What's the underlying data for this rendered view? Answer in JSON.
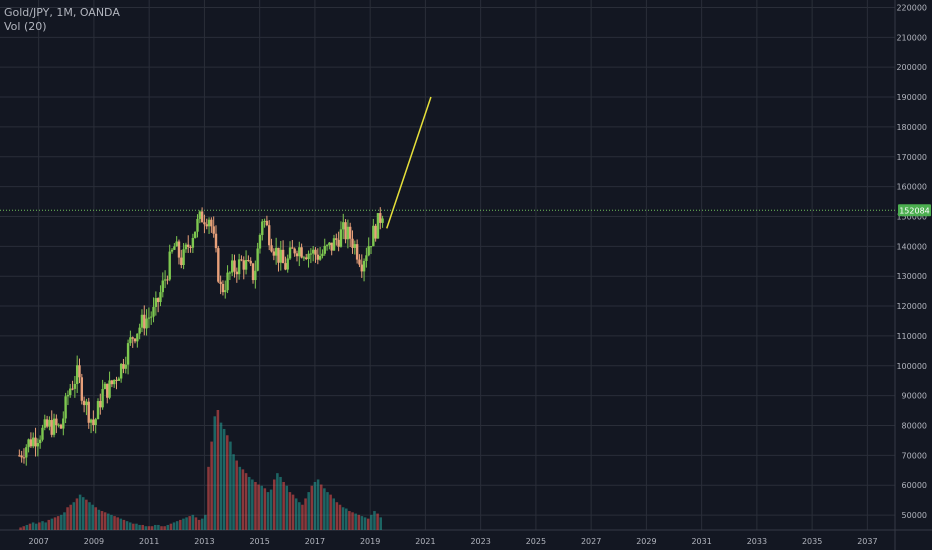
{
  "header": {
    "title": "Gold/JPY, 1M, OANDA",
    "volume_label": "Vol (20)"
  },
  "price_badge": "152084",
  "colors": {
    "background": "#131722",
    "grid": "#2a2e39",
    "up": "#26a69a",
    "down": "#ef5350",
    "candle_up": "#7ec850",
    "candle_down": "#e8a07a",
    "projection": "#e6e03a",
    "badge": "#4caf50",
    "axis_text": "#b2b5be"
  },
  "chart_data": {
    "type": "candlestick",
    "title": "Gold/JPY, 1M, OANDA",
    "xlabel": "",
    "ylabel": "",
    "x_ticks": [
      "2007",
      "2009",
      "2011",
      "2013",
      "2015",
      "2017",
      "2019",
      "2021",
      "2023",
      "2025",
      "2027",
      "2029",
      "2031",
      "2033",
      "2035",
      "2037"
    ],
    "y_ticks": [
      50000,
      60000,
      70000,
      80000,
      90000,
      100000,
      110000,
      120000,
      130000,
      140000,
      150000,
      160000,
      170000,
      180000,
      190000,
      200000,
      210000,
      220000
    ],
    "ylim": [
      45000,
      222500
    ],
    "xlim": [
      2005.6,
      2038.0
    ],
    "grid": true,
    "last_price": 152084,
    "close_path": [
      [
        2006.3,
        70000
      ],
      [
        2006.6,
        74000
      ],
      [
        2007.0,
        77000
      ],
      [
        2007.4,
        80000
      ],
      [
        2007.8,
        79000
      ],
      [
        2008.1,
        92000
      ],
      [
        2008.4,
        97000
      ],
      [
        2008.7,
        87000
      ],
      [
        2009.0,
        80000
      ],
      [
        2009.3,
        91000
      ],
      [
        2009.6,
        93000
      ],
      [
        2010.0,
        100000
      ],
      [
        2010.4,
        110000
      ],
      [
        2010.8,
        115000
      ],
      [
        2011.2,
        118000
      ],
      [
        2011.6,
        130000
      ],
      [
        2011.9,
        140000
      ],
      [
        2012.2,
        135000
      ],
      [
        2012.6,
        145000
      ],
      [
        2012.9,
        150000
      ],
      [
        2013.2,
        150000
      ],
      [
        2013.6,
        125000
      ],
      [
        2014.0,
        132000
      ],
      [
        2014.4,
        135000
      ],
      [
        2014.8,
        130000
      ],
      [
        2015.1,
        150000
      ],
      [
        2015.5,
        140000
      ],
      [
        2015.9,
        133000
      ],
      [
        2016.3,
        140000
      ],
      [
        2016.8,
        138000
      ],
      [
        2017.2,
        137000
      ],
      [
        2017.6,
        140000
      ],
      [
        2018.0,
        145000
      ],
      [
        2018.3,
        143000
      ],
      [
        2018.7,
        135000
      ],
      [
        2019.0,
        142000
      ],
      [
        2019.3,
        148000
      ],
      [
        2019.45,
        152000
      ]
    ],
    "volume_heights": [
      2,
      3,
      4,
      5,
      6,
      5,
      6,
      7,
      6,
      8,
      9,
      10,
      11,
      12,
      14,
      18,
      20,
      22,
      25,
      28,
      26,
      24,
      22,
      20,
      18,
      16,
      15,
      14,
      13,
      12,
      11,
      10,
      9,
      8,
      7,
      6,
      5,
      5,
      4,
      4,
      3,
      3,
      3,
      4,
      4,
      3,
      3,
      4,
      5,
      6,
      7,
      8,
      9,
      10,
      11,
      12,
      10,
      8,
      9,
      12,
      50,
      70,
      90,
      95,
      85,
      80,
      75,
      70,
      60,
      55,
      50,
      48,
      45,
      42,
      40,
      38,
      36,
      35,
      33,
      30,
      32,
      40,
      45,
      42,
      38,
      35,
      30,
      28,
      25,
      22,
      20,
      25,
      30,
      35,
      38,
      40,
      36,
      33,
      30,
      28,
      25,
      22,
      20,
      18,
      17,
      15,
      14,
      13,
      12,
      11,
      10,
      9,
      12,
      15,
      13,
      10
    ],
    "projection": {
      "from": [
        2019.6,
        146000
      ],
      "to": [
        2021.2,
        190000
      ]
    }
  }
}
